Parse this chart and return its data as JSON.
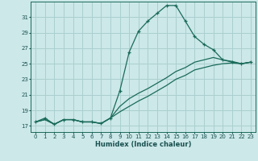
{
  "xlabel": "Humidex (Indice chaleur)",
  "bg_color": "#cce8e8",
  "grid_color": "#aacfcf",
  "line_color": "#1a6b5a",
  "x_ticks": [
    0,
    1,
    2,
    3,
    4,
    5,
    6,
    7,
    8,
    9,
    10,
    11,
    12,
    13,
    14,
    15,
    16,
    17,
    18,
    19,
    20,
    21,
    22,
    23
  ],
  "y_ticks": [
    17,
    19,
    21,
    23,
    25,
    27,
    29,
    31
  ],
  "xlim": [
    -0.5,
    23.5
  ],
  "ylim": [
    16.2,
    33.0
  ],
  "line1_x": [
    0,
    1,
    2,
    3,
    4,
    5,
    6,
    7,
    8,
    9,
    10,
    11,
    12,
    13,
    14,
    15,
    16,
    17,
    18,
    19,
    20,
    21,
    22,
    23
  ],
  "line1_y": [
    17.5,
    18.0,
    17.2,
    17.8,
    17.8,
    17.5,
    17.5,
    17.3,
    18.0,
    21.5,
    26.5,
    29.2,
    30.5,
    31.5,
    32.5,
    32.5,
    30.5,
    28.5,
    27.5,
    26.8,
    25.5,
    25.2,
    25.0,
    25.2
  ],
  "line2_x": [
    0,
    1,
    2,
    3,
    4,
    5,
    6,
    7,
    8,
    9,
    10,
    11,
    12,
    13,
    14,
    15,
    16,
    17,
    18,
    19,
    20,
    21,
    22,
    23
  ],
  "line2_y": [
    17.5,
    17.8,
    17.2,
    17.8,
    17.8,
    17.5,
    17.5,
    17.3,
    18.0,
    19.5,
    20.5,
    21.2,
    21.8,
    22.5,
    23.2,
    24.0,
    24.5,
    25.2,
    25.5,
    25.8,
    25.5,
    25.3,
    25.0,
    25.2
  ],
  "line3_x": [
    0,
    1,
    2,
    3,
    4,
    5,
    6,
    7,
    8,
    9,
    10,
    11,
    12,
    13,
    14,
    15,
    16,
    17,
    18,
    19,
    20,
    21,
    22,
    23
  ],
  "line3_y": [
    17.5,
    17.8,
    17.2,
    17.8,
    17.8,
    17.5,
    17.5,
    17.3,
    18.0,
    18.8,
    19.5,
    20.2,
    20.8,
    21.5,
    22.2,
    23.0,
    23.5,
    24.2,
    24.5,
    24.8,
    25.0,
    25.1,
    25.0,
    25.2
  ]
}
